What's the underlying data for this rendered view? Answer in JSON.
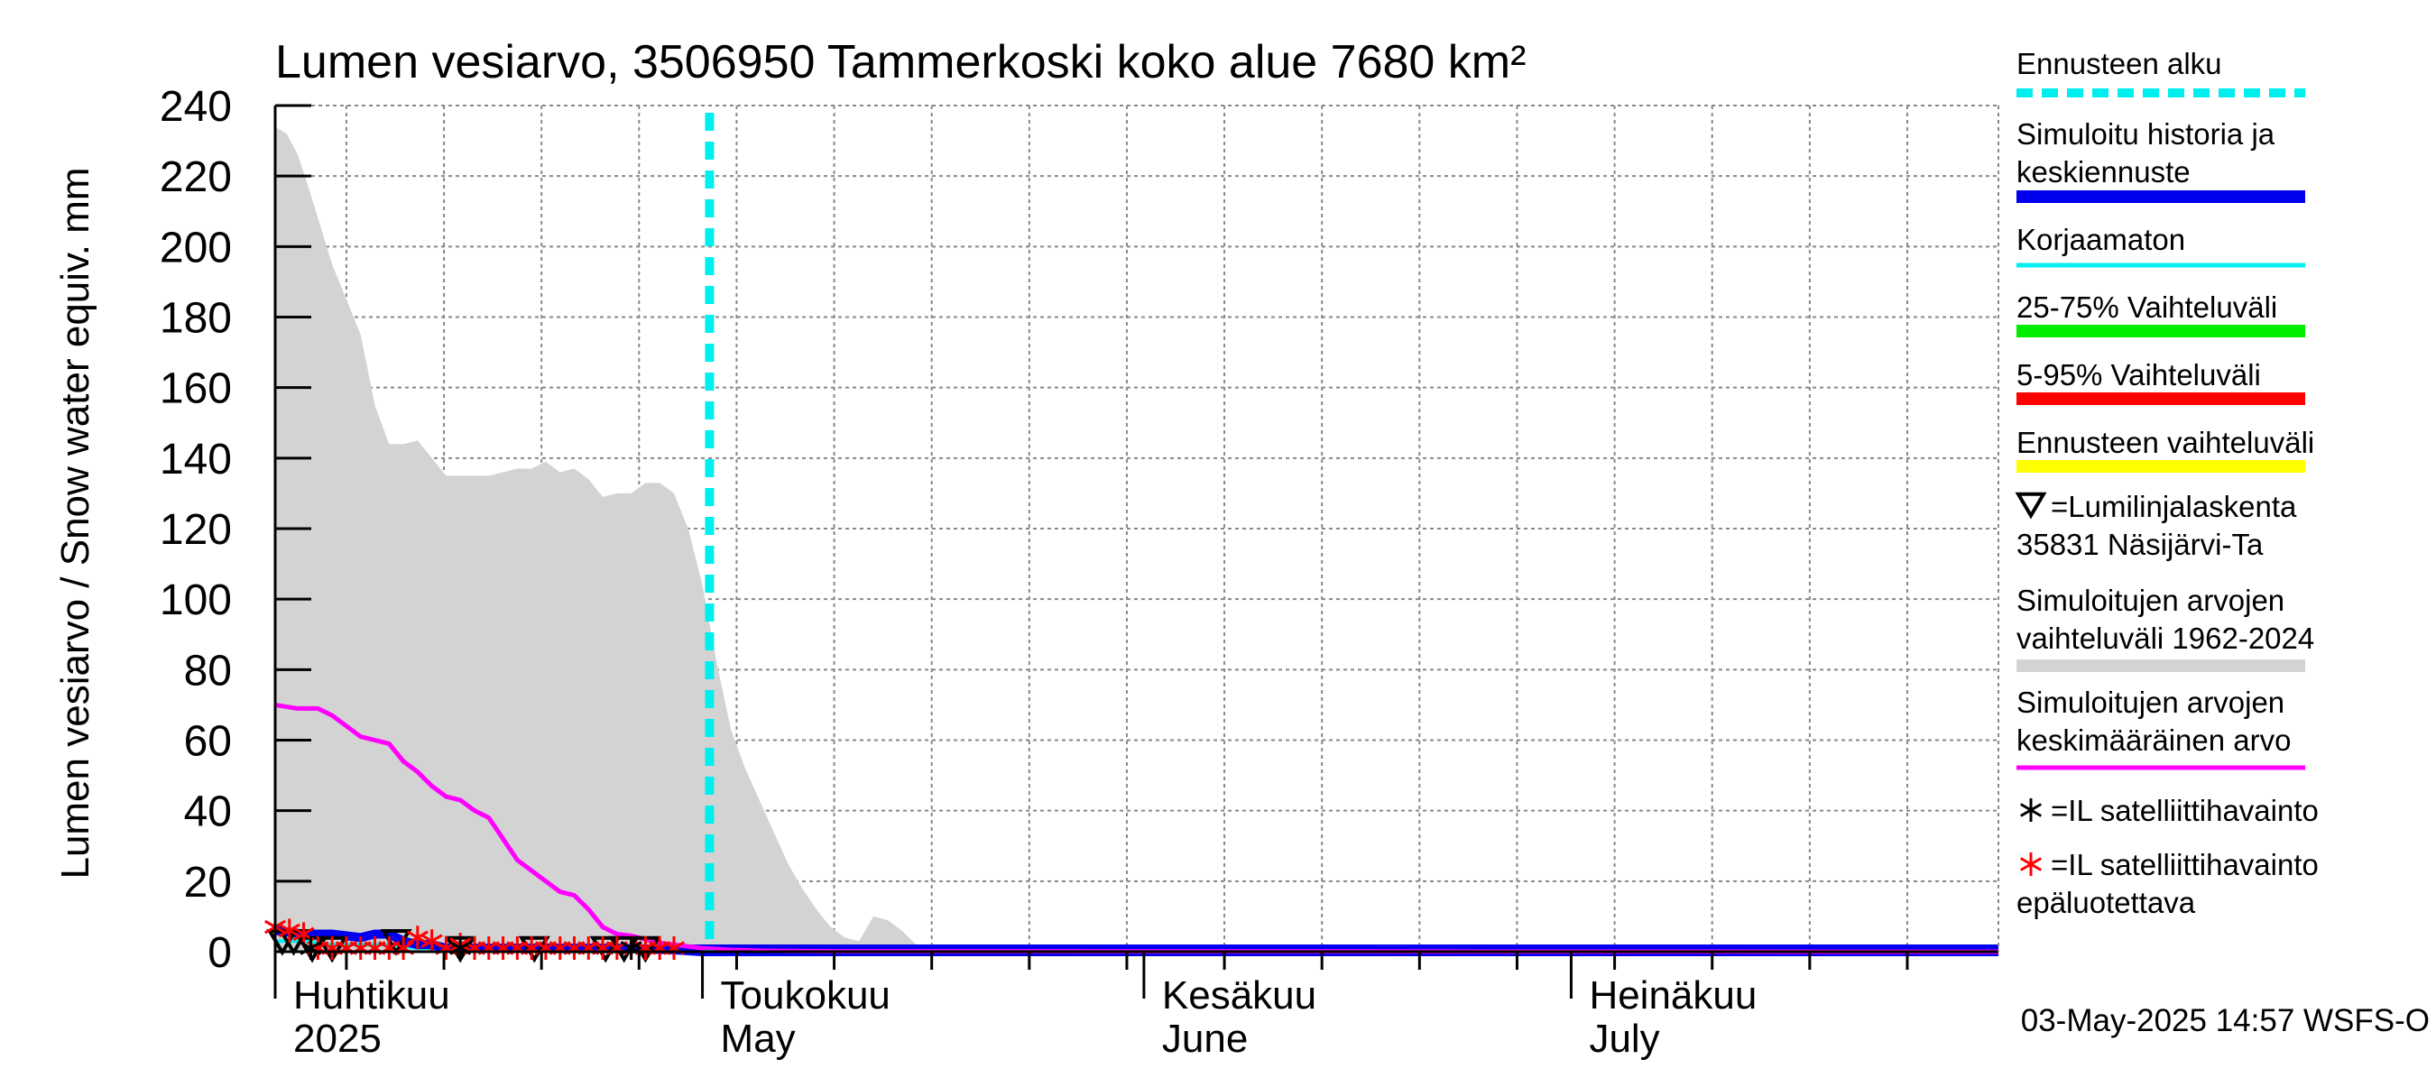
{
  "chart_data": {
    "type": "area",
    "title": "Lumen vesiarvo, 3506950 Tammerkoski koko alue 7680 km²",
    "ylabel": "Lumen vesiarvo / Snow water equiv.    mm",
    "ylim": [
      0,
      240
    ],
    "y_ticks": [
      0,
      20,
      40,
      60,
      80,
      100,
      120,
      140,
      160,
      180,
      200,
      220,
      240
    ],
    "x_range_days": [
      0,
      121
    ],
    "x_unit": "days since 2025-04-01",
    "grid": true,
    "month_labels": [
      {
        "day": 0,
        "line1": "Huhtikuu",
        "line2": "2025"
      },
      {
        "day": 30,
        "line1": "Toukokuu",
        "line2": "May"
      },
      {
        "day": 61,
        "line1": "Kesäkuu",
        "line2": "June"
      },
      {
        "day": 91,
        "line1": "Heinäkuu",
        "line2": "July"
      }
    ],
    "forecast_start_day": 30.5,
    "timestamp": "03-May-2025 14:57 WSFS-O",
    "series": [
      {
        "name": "Simuloitujen arvojen vaihteluväli 1962-2024",
        "type": "area",
        "color": "#d3d3d3",
        "x": [
          0,
          0.8,
          1.6,
          2.4,
          4,
          6,
          7,
          8,
          9,
          10,
          12,
          13,
          14,
          15,
          17,
          18,
          19,
          20,
          21,
          22,
          23,
          24,
          25,
          26,
          27,
          28,
          29,
          30,
          31,
          32,
          33,
          34,
          35,
          36,
          37,
          38,
          39,
          40,
          41,
          42,
          43,
          44,
          45,
          46,
          47,
          48,
          49,
          50,
          52,
          54,
          56,
          60,
          121
        ],
        "values": [
          234,
          232,
          226,
          216,
          195,
          175,
          155,
          144,
          144,
          145,
          135,
          135,
          135,
          135,
          137,
          137,
          139,
          136,
          137,
          134,
          129,
          130,
          130,
          133,
          133,
          130,
          120,
          104,
          82,
          63,
          52,
          43,
          34,
          25,
          18,
          12,
          7,
          4,
          3,
          10,
          9,
          6,
          2,
          1,
          0.6,
          0.4,
          0.3,
          0.2,
          0.1,
          0.1,
          0,
          0,
          0
        ]
      },
      {
        "name": "Simuloitujen arvojen keskimääräinen arvo",
        "type": "line",
        "color": "#ff00ff",
        "x": [
          0,
          1.5,
          3,
          4,
          6,
          8,
          9,
          10,
          11,
          12,
          13,
          14,
          15,
          16,
          17,
          18,
          19,
          20,
          21,
          22,
          23,
          24,
          25,
          26,
          27,
          28,
          29,
          30,
          32,
          34,
          36,
          40,
          121
        ],
        "values": [
          70,
          69,
          69,
          67,
          61,
          59,
          54,
          51,
          47,
          44,
          43,
          40,
          38,
          32,
          26,
          23,
          20,
          17,
          16,
          12,
          7,
          5,
          4.5,
          3.5,
          2.5,
          2,
          1.5,
          1,
          0.5,
          0.3,
          0.2,
          0.1,
          0
        ]
      },
      {
        "name": "Simuloitu historia ja keskiennuste",
        "type": "line",
        "color": "#0000ee",
        "x": [
          0,
          2,
          4,
          6,
          7,
          8,
          9,
          10,
          11,
          12,
          13,
          14,
          16,
          18,
          20,
          24,
          28,
          30,
          121
        ],
        "values": [
          6,
          5,
          5,
          4,
          5,
          5,
          3,
          2,
          2,
          1,
          1,
          1,
          1,
          1,
          1,
          1,
          0.5,
          0,
          0
        ]
      },
      {
        "name": "Korjaamaton",
        "type": "line",
        "color": "#00eeee",
        "x": [
          0,
          2,
          4,
          8,
          10,
          14,
          20,
          30,
          121
        ],
        "values": [
          3,
          3,
          2,
          2,
          1,
          1,
          0,
          0,
          0
        ]
      }
    ],
    "observations": [
      {
        "name": "Lumilinjalaskenta 35831 Näsijärvi-Ta",
        "marker": "triangle-down",
        "x": [
          0.5,
          1.3,
          2.6,
          4,
          8.5,
          13,
          18.2,
          23.2,
          24.5,
          26
        ],
        "values": [
          2,
          2,
          0,
          0,
          2,
          0,
          0,
          0,
          0,
          0
        ]
      },
      {
        "name": "IL satelliittihavainto",
        "marker": "asterisk",
        "color": "#000000",
        "x": [
          2.5,
          13,
          25
        ],
        "values": [
          0,
          0,
          0
        ]
      },
      {
        "name": "IL satelliittihavainto epäluotettava",
        "marker": "asterisk",
        "color": "#ff0000",
        "x": [
          0,
          1,
          2,
          3,
          4,
          5,
          6,
          7,
          8,
          9,
          10,
          11,
          12,
          13,
          14,
          15,
          16,
          17,
          18,
          19,
          20,
          21,
          22,
          23,
          24,
          25,
          26,
          27,
          28
        ],
        "values": [
          6,
          5,
          4,
          0,
          0,
          0,
          0,
          0,
          0,
          0,
          3,
          2,
          0,
          1,
          0,
          0,
          0,
          0,
          0,
          0,
          0,
          0,
          0,
          0,
          0,
          0,
          0,
          0,
          0
        ]
      }
    ],
    "legend": [
      {
        "key": "forecast",
        "label": "Ennusteen alku",
        "color": "#00eeee",
        "style": "dashed"
      },
      {
        "key": "hist",
        "label": "Simuloitu historia ja keskiennuste",
        "line1": "Simuloitu historia ja",
        "line2": "keskiennuste",
        "color": "#0000ee",
        "style": "thick"
      },
      {
        "key": "uncorr",
        "label": "Korjaamaton",
        "color": "#00eeee",
        "style": "thin"
      },
      {
        "key": "p2575",
        "label": "25-75% Vaihteluväli",
        "color": "#00ee00",
        "style": "thick"
      },
      {
        "key": "p595",
        "label": "5-95% Vaihteluväli",
        "color": "#ff0000",
        "style": "thick"
      },
      {
        "key": "fcrange",
        "label": "Ennusteen vaihteluväli",
        "color": "#ffff00",
        "style": "thick"
      },
      {
        "key": "snowline",
        "label": "=Lumilinjalaskenta 35831 Näsijärvi-Ta",
        "line1": "=Lumilinjalaskenta",
        "line2": "35831 Näsijärvi-Ta"
      },
      {
        "key": "range",
        "label": "Simuloitujen arvojen vaihteluväli 1962-2024",
        "line1": "Simuloitujen arvojen",
        "line2": "vaihteluväli 1962-2024",
        "color": "#d3d3d3",
        "style": "thick"
      },
      {
        "key": "mean",
        "label": "Simuloitujen arvojen keskimääräinen arvo",
        "line1": "Simuloitujen arvojen",
        "line2": "keskimääräinen arvo",
        "color": "#ff00ff",
        "style": "medium"
      },
      {
        "key": "sat",
        "label": "=IL satelliittihavainto",
        "color": "#000000"
      },
      {
        "key": "satbad",
        "label": "=IL satelliittihavainto epäluotettava",
        "line1": "=IL satelliittihavainto",
        "line2": "epäluotettava",
        "color": "#ff0000"
      }
    ]
  }
}
